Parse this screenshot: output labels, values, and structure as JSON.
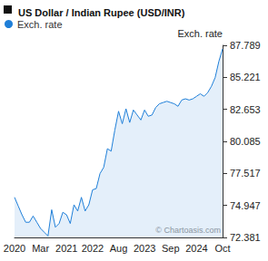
{
  "chart_data": {
    "type": "area",
    "title": "US Dollar / Indian Rupee (USD/INR)",
    "y_label": "Exch. rate",
    "annotations": [
      "© Chartoasis.com"
    ],
    "legend": "top-left",
    "grid": false,
    "categories": [
      "2020",
      null,
      null,
      null,
      null,
      null,
      null,
      "Mar",
      null,
      null,
      null,
      null,
      null,
      null,
      "2021",
      null,
      null,
      null,
      null,
      null,
      null,
      "2022",
      null,
      null,
      null,
      null,
      null,
      null,
      "Aug",
      null,
      null,
      null,
      null,
      null,
      null,
      "2023",
      null,
      null,
      null,
      null,
      null,
      null,
      "Sep",
      null,
      null,
      null,
      null,
      null,
      null,
      "2024",
      null,
      null,
      null,
      null,
      null,
      null,
      "Oct"
    ],
    "series": [
      {
        "name": "Exch. rate",
        "color": "#1f7fd8",
        "values": [
          75.6,
          74.9,
          74.2,
          73.6,
          73.6,
          74.1,
          73.6,
          73.1,
          72.8,
          72.5,
          74.6,
          73.2,
          73.5,
          74.4,
          74.2,
          73.5,
          75.0,
          74.5,
          75.6,
          74.5,
          75.0,
          76.2,
          76.3,
          77.5,
          78.0,
          79.5,
          79.3,
          81.0,
          82.5,
          81.5,
          82.7,
          81.6,
          82.6,
          82.2,
          81.8,
          82.6,
          82.1,
          82.2,
          82.8,
          83.1,
          83.2,
          83.3,
          83.2,
          83.1,
          82.9,
          83.4,
          83.5,
          83.4,
          83.5,
          83.7,
          83.9,
          83.7,
          84.0,
          84.5,
          85.2,
          86.5,
          87.5
        ]
      }
    ],
    "ylim": [
      72.381,
      87.789
    ],
    "yticks": [
      72.381,
      74.947,
      77.517,
      80.085,
      82.653,
      85.221,
      87.789
    ]
  }
}
